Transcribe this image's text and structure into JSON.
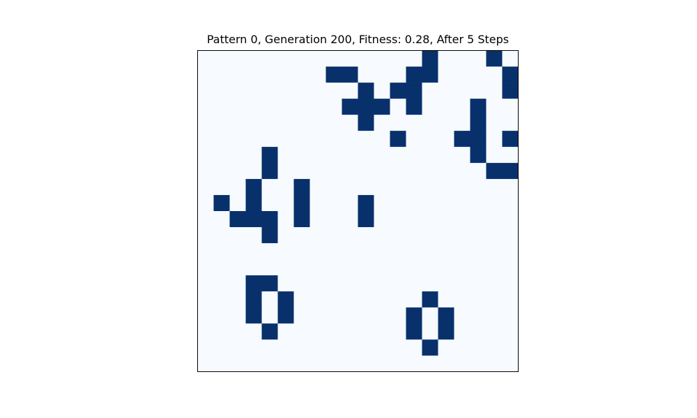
{
  "chart_data": {
    "type": "heatmap",
    "title": "Pattern 0, Generation 200, Fitness: 0.28, After 5 Steps",
    "xlabel": "",
    "ylabel": "",
    "grid": false,
    "rows": 20,
    "cols": 20,
    "colors": {
      "dead": "#f7fbff",
      "alive": "#08306b",
      "frame": "#000000"
    },
    "values": [
      [
        0,
        0,
        0,
        0,
        0,
        0,
        0,
        0,
        0,
        0,
        0,
        0,
        0,
        0,
        1,
        0,
        0,
        0,
        1,
        0
      ],
      [
        0,
        0,
        0,
        0,
        0,
        0,
        0,
        0,
        1,
        1,
        0,
        0,
        0,
        1,
        1,
        0,
        0,
        0,
        0,
        1
      ],
      [
        0,
        0,
        0,
        0,
        0,
        0,
        0,
        0,
        0,
        0,
        1,
        0,
        1,
        1,
        0,
        0,
        0,
        0,
        0,
        1
      ],
      [
        0,
        0,
        0,
        0,
        0,
        0,
        0,
        0,
        0,
        1,
        1,
        1,
        0,
        1,
        0,
        0,
        0,
        1,
        0,
        0
      ],
      [
        0,
        0,
        0,
        0,
        0,
        0,
        0,
        0,
        0,
        0,
        1,
        0,
        0,
        0,
        0,
        0,
        0,
        1,
        0,
        0
      ],
      [
        0,
        0,
        0,
        0,
        0,
        0,
        0,
        0,
        0,
        0,
        0,
        0,
        1,
        0,
        0,
        0,
        1,
        1,
        0,
        1
      ],
      [
        0,
        0,
        0,
        0,
        1,
        0,
        0,
        0,
        0,
        0,
        0,
        0,
        0,
        0,
        0,
        0,
        0,
        1,
        0,
        0
      ],
      [
        0,
        0,
        0,
        0,
        1,
        0,
        0,
        0,
        0,
        0,
        0,
        0,
        0,
        0,
        0,
        0,
        0,
        0,
        1,
        1
      ],
      [
        0,
        0,
        0,
        1,
        0,
        0,
        1,
        0,
        0,
        0,
        0,
        0,
        0,
        0,
        0,
        0,
        0,
        0,
        0,
        0
      ],
      [
        0,
        1,
        0,
        1,
        0,
        0,
        1,
        0,
        0,
        0,
        1,
        0,
        0,
        0,
        0,
        0,
        0,
        0,
        0,
        0
      ],
      [
        0,
        0,
        1,
        1,
        1,
        0,
        1,
        0,
        0,
        0,
        1,
        0,
        0,
        0,
        0,
        0,
        0,
        0,
        0,
        0
      ],
      [
        0,
        0,
        0,
        0,
        1,
        0,
        0,
        0,
        0,
        0,
        0,
        0,
        0,
        0,
        0,
        0,
        0,
        0,
        0,
        0
      ],
      [
        0,
        0,
        0,
        0,
        0,
        0,
        0,
        0,
        0,
        0,
        0,
        0,
        0,
        0,
        0,
        0,
        0,
        0,
        0,
        0
      ],
      [
        0,
        0,
        0,
        0,
        0,
        0,
        0,
        0,
        0,
        0,
        0,
        0,
        0,
        0,
        0,
        0,
        0,
        0,
        0,
        0
      ],
      [
        0,
        0,
        0,
        1,
        1,
        0,
        0,
        0,
        0,
        0,
        0,
        0,
        0,
        0,
        0,
        0,
        0,
        0,
        0,
        0
      ],
      [
        0,
        0,
        0,
        1,
        0,
        1,
        0,
        0,
        0,
        0,
        0,
        0,
        0,
        0,
        1,
        0,
        0,
        0,
        0,
        0
      ],
      [
        0,
        0,
        0,
        1,
        0,
        1,
        0,
        0,
        0,
        0,
        0,
        0,
        0,
        1,
        0,
        1,
        0,
        0,
        0,
        0
      ],
      [
        0,
        0,
        0,
        0,
        1,
        0,
        0,
        0,
        0,
        0,
        0,
        0,
        0,
        1,
        0,
        1,
        0,
        0,
        0,
        0
      ],
      [
        0,
        0,
        0,
        0,
        0,
        0,
        0,
        0,
        0,
        0,
        0,
        0,
        0,
        0,
        1,
        0,
        0,
        0,
        0,
        0
      ],
      [
        0,
        0,
        0,
        0,
        0,
        0,
        0,
        0,
        0,
        0,
        0,
        0,
        0,
        0,
        0,
        0,
        0,
        0,
        0,
        0
      ]
    ]
  }
}
